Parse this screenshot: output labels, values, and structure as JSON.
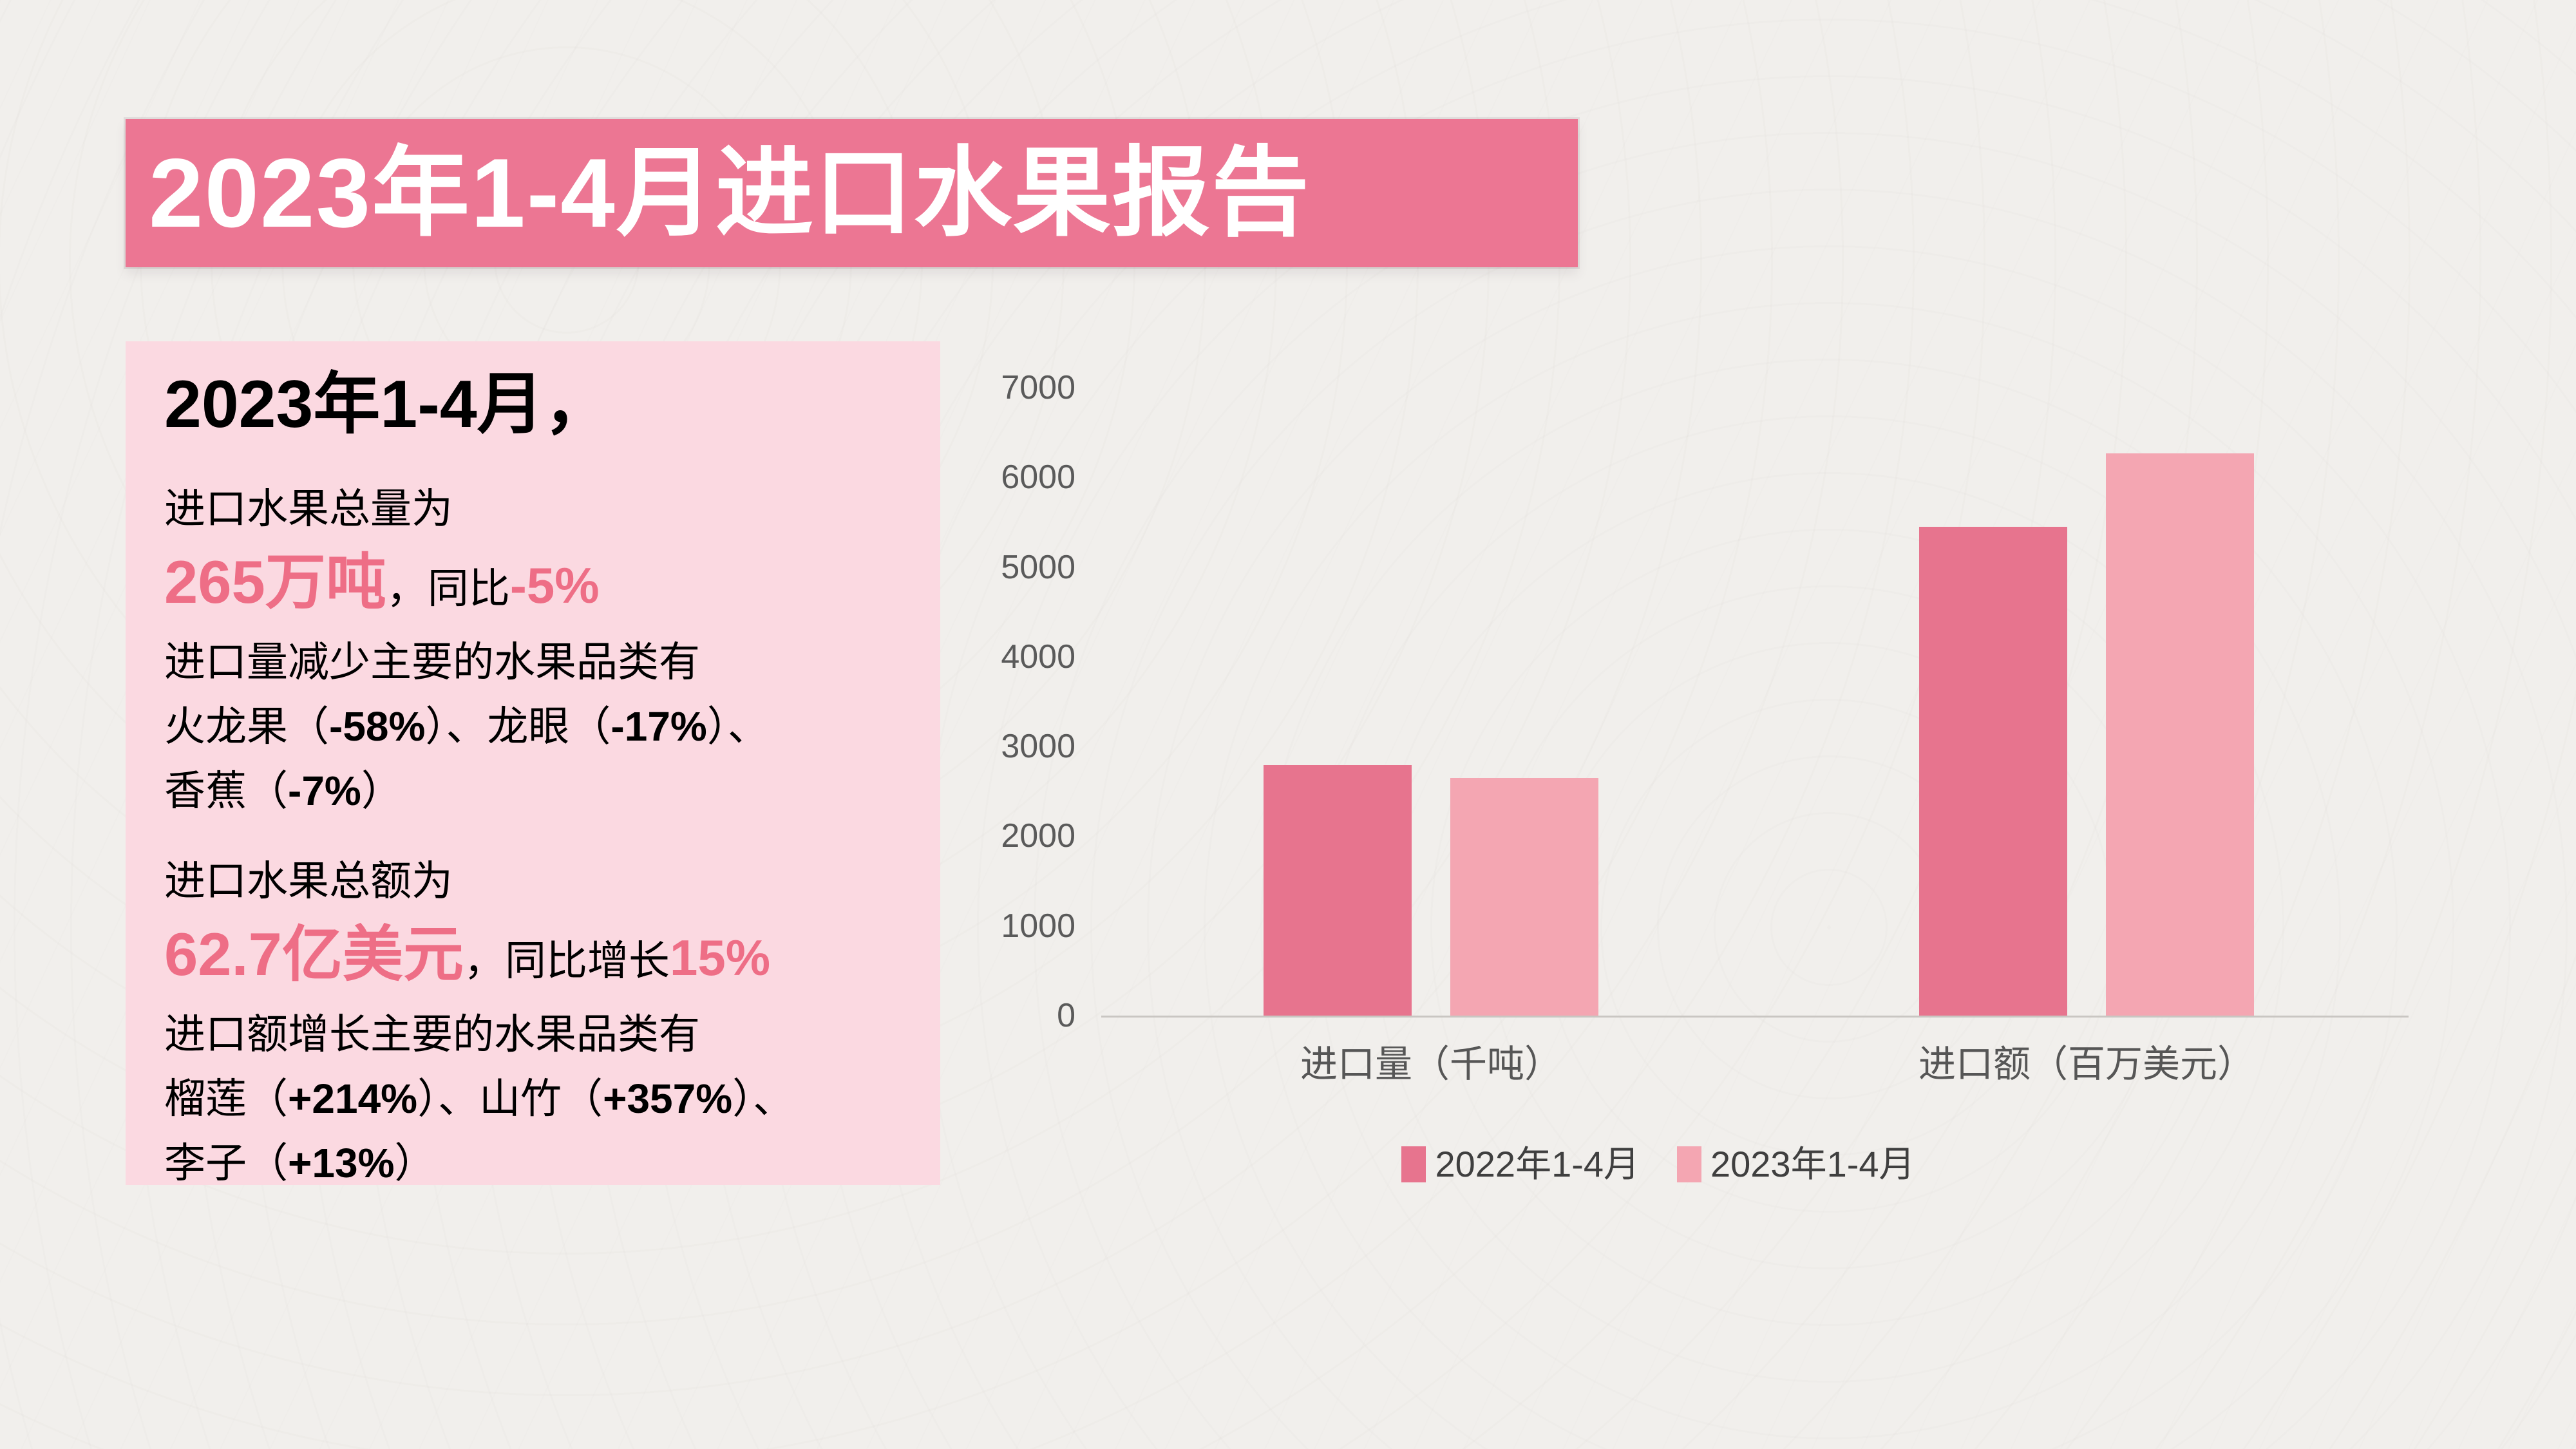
{
  "slide": {
    "title": "2023年1-4月进口水果报告"
  },
  "summary": {
    "heading": "2023年1-4月，",
    "paragraphs": [
      {
        "lines": [
          [
            {
              "t": "进口水果总量为",
              "s": "n"
            }
          ],
          [
            {
              "t": "265万吨",
              "s": "accent_big"
            },
            {
              "t": "，同比",
              "s": "n"
            },
            {
              "t": "-5%",
              "s": "accent_mid"
            }
          ],
          [
            {
              "t": "进口量减少主要的水果品类有",
              "s": "n"
            }
          ],
          [
            {
              "t": "火龙果（",
              "s": "n"
            },
            {
              "t": "-58%",
              "s": "b"
            },
            {
              "t": "）、龙眼（",
              "s": "n"
            },
            {
              "t": "-17%",
              "s": "b"
            },
            {
              "t": "）、",
              "s": "n"
            }
          ],
          [
            {
              "t": "香蕉（",
              "s": "n"
            },
            {
              "t": "-7%",
              "s": "b"
            },
            {
              "t": "）",
              "s": "n"
            }
          ]
        ]
      },
      {
        "lines": [
          [
            {
              "t": "进口水果总额为",
              "s": "n"
            }
          ],
          [
            {
              "t": "62.7亿美元",
              "s": "accent_big"
            },
            {
              "t": "，同比增长",
              "s": "n"
            },
            {
              "t": "15%",
              "s": "accent_mid"
            }
          ],
          [
            {
              "t": "进口额增长主要的水果品类有",
              "s": "n"
            }
          ],
          [
            {
              "t": "榴莲（",
              "s": "n"
            },
            {
              "t": "+214%",
              "s": "b"
            },
            {
              "t": "）、山竹（",
              "s": "n"
            },
            {
              "t": "+357%",
              "s": "b"
            },
            {
              "t": "）、",
              "s": "n"
            }
          ],
          [
            {
              "t": "李子（",
              "s": "n"
            },
            {
              "t": "+13%",
              "s": "b"
            },
            {
              "t": "）",
              "s": "n"
            }
          ]
        ]
      }
    ]
  },
  "chart_data": {
    "type": "bar",
    "categories": [
      "进口量（千吨）",
      "进口额（百万美元）"
    ],
    "series": [
      {
        "name": "2022年1-4月",
        "color": "#E7748E",
        "values": [
          2790,
          5450
        ]
      },
      {
        "name": "2023年1-4月",
        "color": "#F4A6B2",
        "values": [
          2650,
          6270
        ]
      }
    ],
    "title": "",
    "xlabel": "",
    "ylabel": "",
    "ylim": [
      0,
      7000
    ],
    "yticks": [
      0,
      1000,
      2000,
      3000,
      4000,
      5000,
      6000,
      7000
    ],
    "grid": false,
    "legend_position": "bottom"
  },
  "colors": {
    "banner": "#EC7693",
    "box_bg": "#FBD9E1",
    "accent": "#EE6E86",
    "bar_2022": "#E7748E",
    "bar_2023": "#F4A6B2",
    "axis_line": "#C9C6C2",
    "tick_text": "#5A5A5A",
    "page_bg": "#F1EFEC"
  }
}
